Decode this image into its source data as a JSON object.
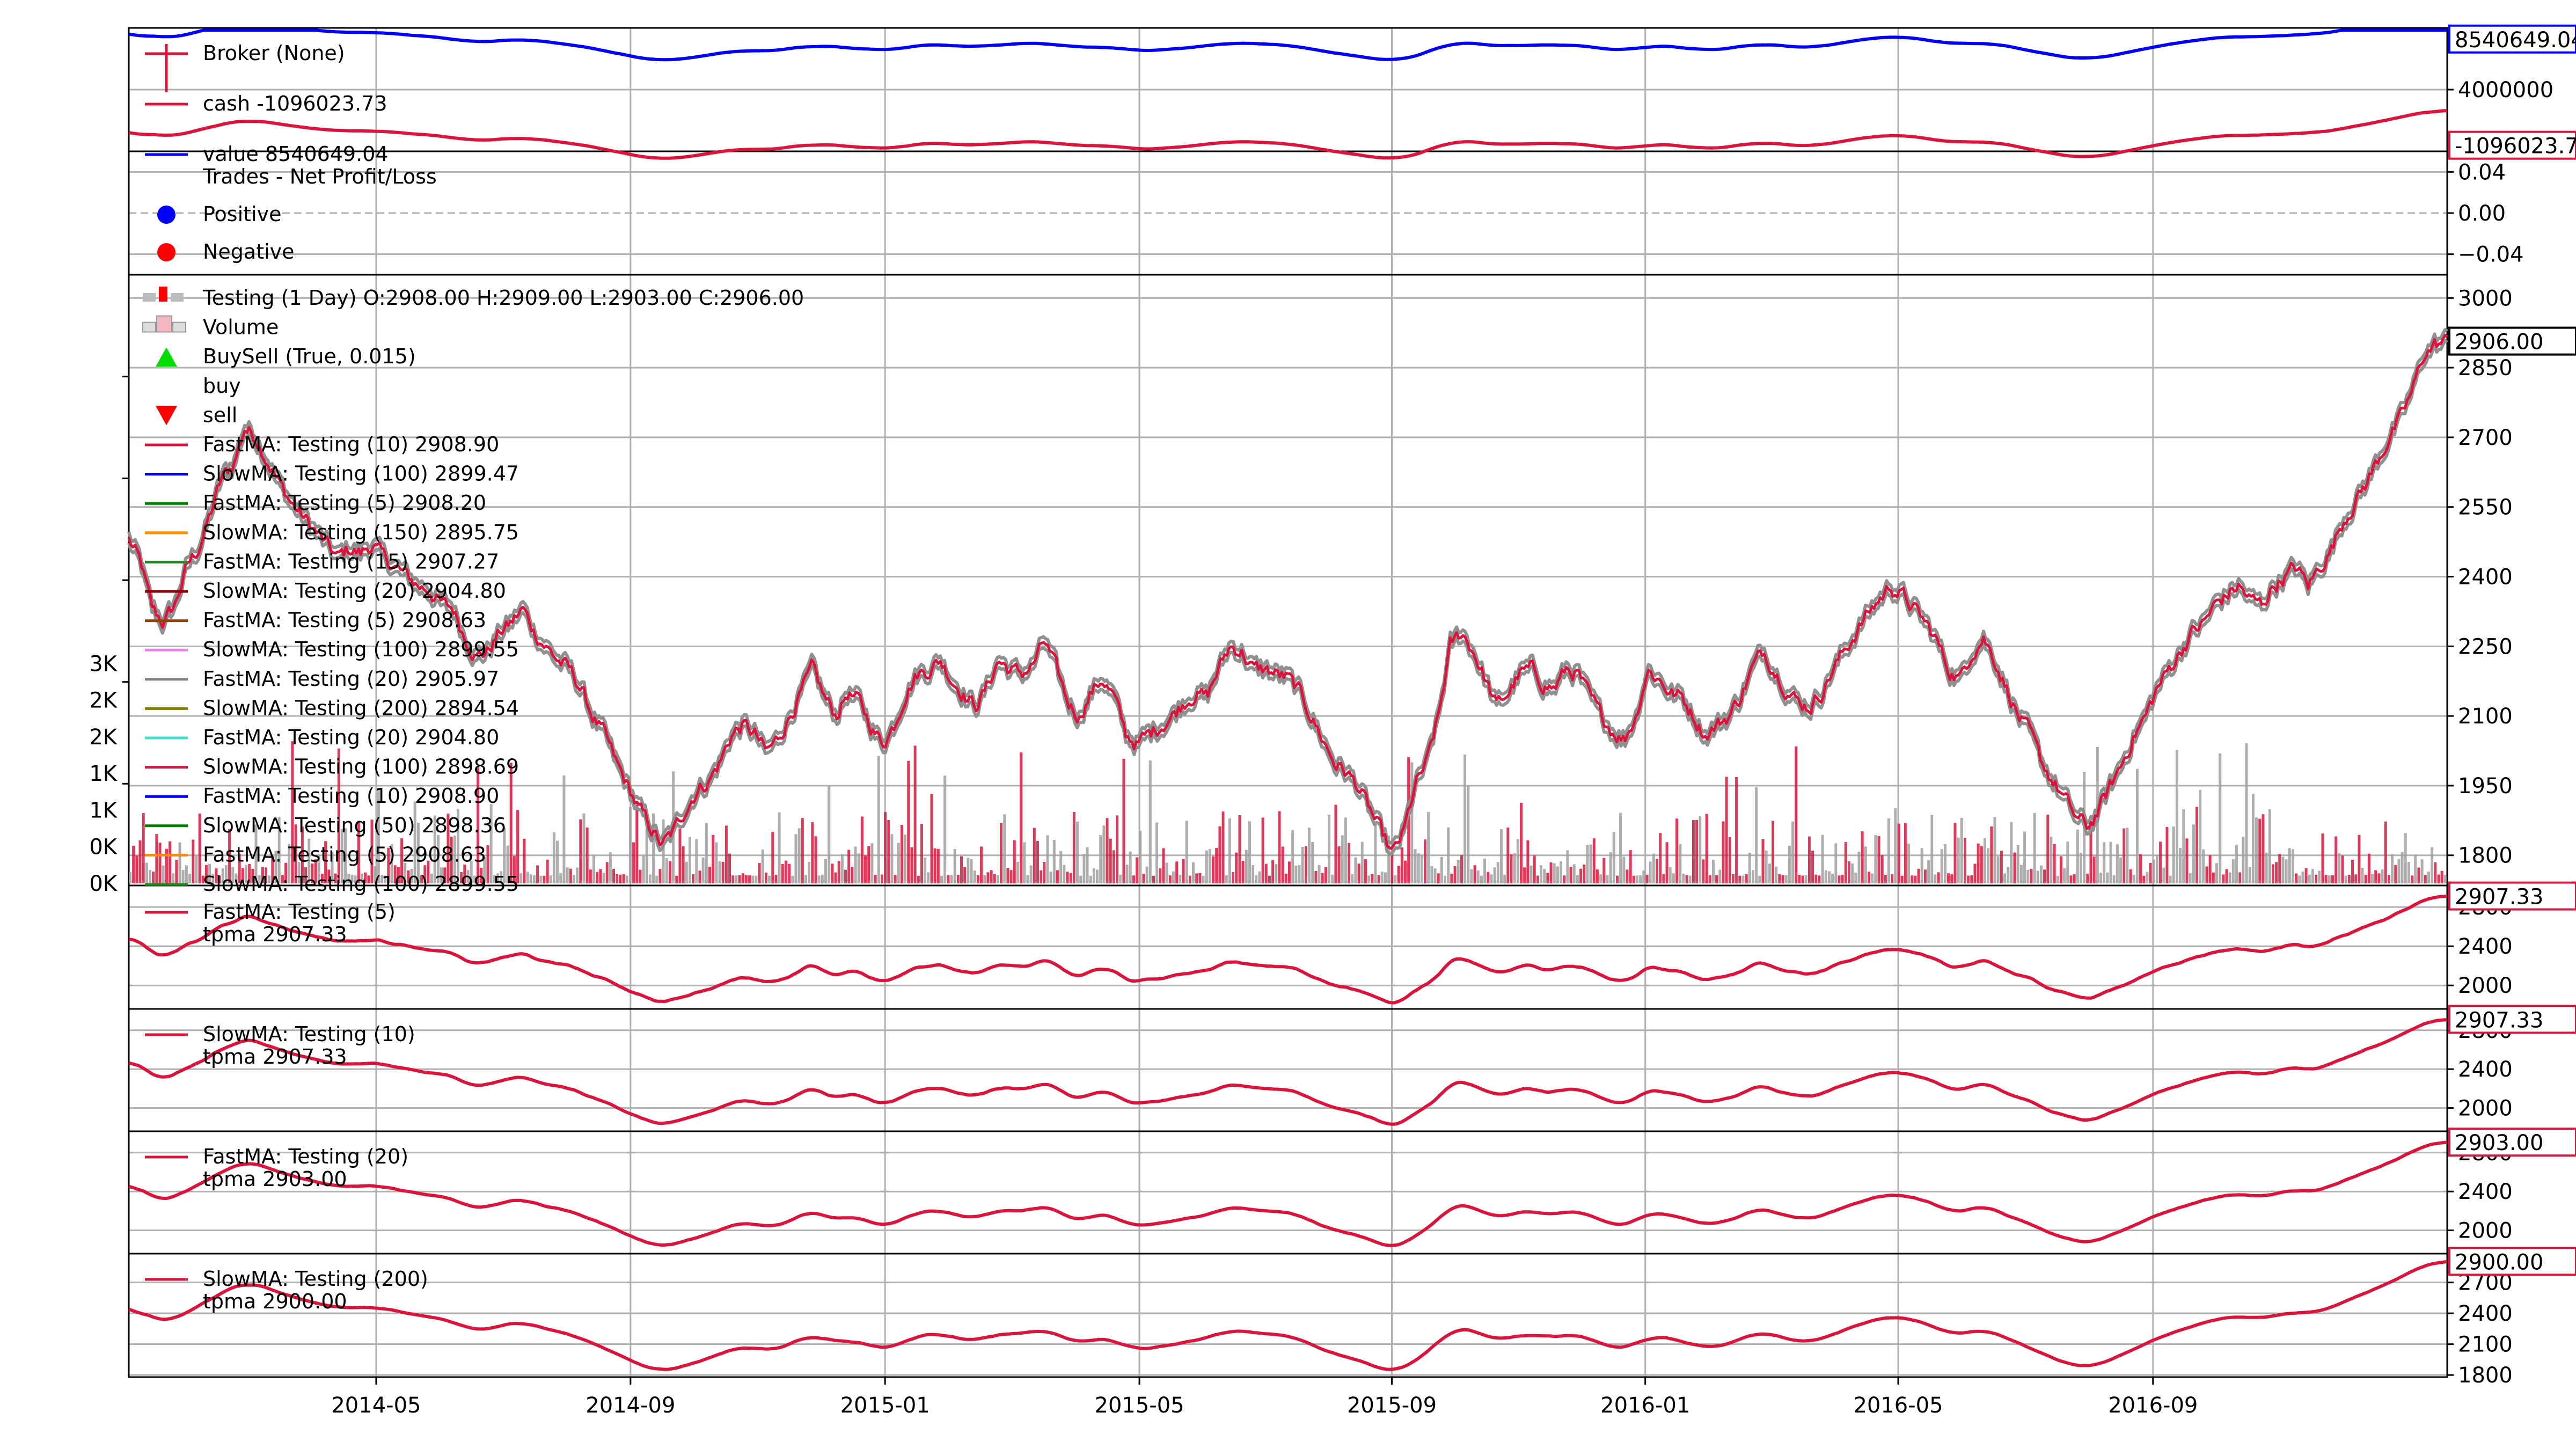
{
  "chart_data": {
    "type": "line",
    "x_ticks": [
      "2014-05",
      "2014-09",
      "2015-01",
      "2015-05",
      "2015-09",
      "2016-01",
      "2016-05",
      "2016-09"
    ],
    "x_tick_positions": [
      0.1067,
      0.2164,
      0.3262,
      0.4359,
      0.5448,
      0.6541,
      0.7632,
      0.8731
    ],
    "series_color_default": "#dc143c",
    "price_anchors": [
      [
        0.0,
        2480
      ],
      [
        0.005,
        2430
      ],
      [
        0.01,
        2330
      ],
      [
        0.015,
        2300
      ],
      [
        0.02,
        2340
      ],
      [
        0.025,
        2420
      ],
      [
        0.03,
        2460
      ],
      [
        0.035,
        2530
      ],
      [
        0.04,
        2610
      ],
      [
        0.045,
        2640
      ],
      [
        0.05,
        2720
      ],
      [
        0.055,
        2700
      ],
      [
        0.06,
        2650
      ],
      [
        0.065,
        2600
      ],
      [
        0.07,
        2560
      ],
      [
        0.075,
        2530
      ],
      [
        0.08,
        2500
      ],
      [
        0.085,
        2470
      ],
      [
        0.09,
        2440
      ],
      [
        0.095,
        2460
      ],
      [
        0.1,
        2450
      ],
      [
        0.105,
        2470
      ],
      [
        0.11,
        2440
      ],
      [
        0.115,
        2420
      ],
      [
        0.12,
        2400
      ],
      [
        0.125,
        2380
      ],
      [
        0.13,
        2370
      ],
      [
        0.135,
        2340
      ],
      [
        0.14,
        2330
      ],
      [
        0.145,
        2270
      ],
      [
        0.15,
        2230
      ],
      [
        0.155,
        2240
      ],
      [
        0.16,
        2280
      ],
      [
        0.165,
        2300
      ],
      [
        0.17,
        2330
      ],
      [
        0.175,
        2280
      ],
      [
        0.18,
        2250
      ],
      [
        0.185,
        2220
      ],
      [
        0.19,
        2200
      ],
      [
        0.195,
        2160
      ],
      [
        0.2,
        2100
      ],
      [
        0.205,
        2060
      ],
      [
        0.21,
        2000
      ],
      [
        0.215,
        1950
      ],
      [
        0.22,
        1900
      ],
      [
        0.225,
        1860
      ],
      [
        0.23,
        1820
      ],
      [
        0.235,
        1850
      ],
      [
        0.24,
        1900
      ],
      [
        0.245,
        1940
      ],
      [
        0.25,
        1960
      ],
      [
        0.255,
        2000
      ],
      [
        0.26,
        2060
      ],
      [
        0.265,
        2080
      ],
      [
        0.27,
        2060
      ],
      [
        0.275,
        2020
      ],
      [
        0.28,
        2050
      ],
      [
        0.285,
        2100
      ],
      [
        0.29,
        2150
      ],
      [
        0.295,
        2200
      ],
      [
        0.3,
        2140
      ],
      [
        0.305,
        2100
      ],
      [
        0.31,
        2150
      ],
      [
        0.315,
        2130
      ],
      [
        0.32,
        2080
      ],
      [
        0.325,
        2040
      ],
      [
        0.33,
        2080
      ],
      [
        0.335,
        2150
      ],
      [
        0.34,
        2190
      ],
      [
        0.345,
        2200
      ],
      [
        0.35,
        2220
      ],
      [
        0.355,
        2180
      ],
      [
        0.36,
        2150
      ],
      [
        0.365,
        2120
      ],
      [
        0.37,
        2160
      ],
      [
        0.375,
        2220
      ],
      [
        0.38,
        2200
      ],
      [
        0.385,
        2190
      ],
      [
        0.39,
        2210
      ],
      [
        0.395,
        2260
      ],
      [
        0.4,
        2200
      ],
      [
        0.405,
        2130
      ],
      [
        0.41,
        2100
      ],
      [
        0.415,
        2150
      ],
      [
        0.42,
        2180
      ],
      [
        0.425,
        2140
      ],
      [
        0.43,
        2060
      ],
      [
        0.435,
        2040
      ],
      [
        0.44,
        2060
      ],
      [
        0.445,
        2080
      ],
      [
        0.45,
        2100
      ],
      [
        0.455,
        2130
      ],
      [
        0.46,
        2150
      ],
      [
        0.465,
        2140
      ],
      [
        0.47,
        2200
      ],
      [
        0.475,
        2250
      ],
      [
        0.48,
        2240
      ],
      [
        0.485,
        2200
      ],
      [
        0.49,
        2200
      ],
      [
        0.495,
        2190
      ],
      [
        0.5,
        2180
      ],
      [
        0.505,
        2150
      ],
      [
        0.51,
        2100
      ],
      [
        0.515,
        2050
      ],
      [
        0.52,
        2000
      ],
      [
        0.525,
        1980
      ],
      [
        0.53,
        1950
      ],
      [
        0.535,
        1900
      ],
      [
        0.54,
        1850
      ],
      [
        0.545,
        1800
      ],
      [
        0.55,
        1850
      ],
      [
        0.555,
        1950
      ],
      [
        0.56,
        2000
      ],
      [
        0.565,
        2100
      ],
      [
        0.57,
        2250
      ],
      [
        0.575,
        2280
      ],
      [
        0.58,
        2240
      ],
      [
        0.585,
        2180
      ],
      [
        0.59,
        2120
      ],
      [
        0.595,
        2150
      ],
      [
        0.6,
        2190
      ],
      [
        0.605,
        2200
      ],
      [
        0.61,
        2170
      ],
      [
        0.615,
        2160
      ],
      [
        0.62,
        2200
      ],
      [
        0.625,
        2190
      ],
      [
        0.63,
        2140
      ],
      [
        0.635,
        2100
      ],
      [
        0.64,
        2070
      ],
      [
        0.645,
        2050
      ],
      [
        0.65,
        2100
      ],
      [
        0.655,
        2200
      ],
      [
        0.66,
        2180
      ],
      [
        0.665,
        2150
      ],
      [
        0.67,
        2140
      ],
      [
        0.675,
        2100
      ],
      [
        0.68,
        2060
      ],
      [
        0.685,
        2080
      ],
      [
        0.69,
        2100
      ],
      [
        0.695,
        2140
      ],
      [
        0.7,
        2200
      ],
      [
        0.705,
        2240
      ],
      [
        0.71,
        2200
      ],
      [
        0.715,
        2160
      ],
      [
        0.72,
        2130
      ],
      [
        0.725,
        2120
      ],
      [
        0.73,
        2150
      ],
      [
        0.735,
        2200
      ],
      [
        0.74,
        2240
      ],
      [
        0.745,
        2280
      ],
      [
        0.75,
        2320
      ],
      [
        0.755,
        2350
      ],
      [
        0.76,
        2380
      ],
      [
        0.765,
        2360
      ],
      [
        0.77,
        2330
      ],
      [
        0.775,
        2300
      ],
      [
        0.78,
        2260
      ],
      [
        0.785,
        2200
      ],
      [
        0.79,
        2180
      ],
      [
        0.795,
        2240
      ],
      [
        0.8,
        2270
      ],
      [
        0.805,
        2220
      ],
      [
        0.81,
        2160
      ],
      [
        0.815,
        2100
      ],
      [
        0.82,
        2060
      ],
      [
        0.825,
        2000
      ],
      [
        0.83,
        1960
      ],
      [
        0.835,
        1920
      ],
      [
        0.84,
        1880
      ],
      [
        0.845,
        1860
      ],
      [
        0.85,
        1900
      ],
      [
        0.855,
        1950
      ],
      [
        0.86,
        2000
      ],
      [
        0.865,
        2060
      ],
      [
        0.87,
        2100
      ],
      [
        0.875,
        2160
      ],
      [
        0.88,
        2200
      ],
      [
        0.885,
        2240
      ],
      [
        0.89,
        2280
      ],
      [
        0.895,
        2300
      ],
      [
        0.9,
        2340
      ],
      [
        0.905,
        2360
      ],
      [
        0.91,
        2380
      ],
      [
        0.915,
        2350
      ],
      [
        0.92,
        2340
      ],
      [
        0.925,
        2380
      ],
      [
        0.93,
        2400
      ],
      [
        0.935,
        2420
      ],
      [
        0.94,
        2380
      ],
      [
        0.945,
        2420
      ],
      [
        0.95,
        2460
      ],
      [
        0.955,
        2520
      ],
      [
        0.96,
        2560
      ],
      [
        0.965,
        2600
      ],
      [
        0.97,
        2650
      ],
      [
        0.975,
        2700
      ],
      [
        0.98,
        2740
      ],
      [
        0.985,
        2800
      ],
      [
        0.99,
        2880
      ],
      [
        0.995,
        2900
      ],
      [
        1.0,
        2906
      ]
    ],
    "volume_ticks": [
      "0K",
      "0K",
      "1K",
      "1K",
      "2K",
      "2K",
      "3K"
    ],
    "volume_tick_values": [
      0,
      500,
      1000,
      1500,
      2000,
      2500,
      3000
    ],
    "panels": [
      {
        "name": "broker",
        "legend": [
          {
            "label": "Broker (None)",
            "color": "#dc143c",
            "marker": "header"
          },
          {
            "label": "cash -1096023.73",
            "color": "#dc143c",
            "marker": "line"
          },
          {
            "label": "value 8540649.04",
            "color": "#0000ff",
            "marker": "line"
          }
        ],
        "y_ticks": [
          {
            "label": "4000000",
            "v": 4000000
          }
        ],
        "ylim": [
          -1600000,
          9600000
        ],
        "value_line_offset": 8540649.04,
        "cash_line_offset": -1096023.73,
        "tags": [
          {
            "text": "8540649.04",
            "color": "#0000ff",
            "v": 8540649.04
          },
          {
            "text": "-1096023.73",
            "color": "#dc143c",
            "v": -1096023.73
          }
        ]
      },
      {
        "name": "trades",
        "legend": [
          {
            "label": "Trades - Net Profit/Loss",
            "color": "#000000",
            "marker": "none"
          },
          {
            "label": "Positive",
            "color": "#0000ff",
            "marker": "dot"
          },
          {
            "label": "Negative",
            "color": "#ff0000",
            "marker": "dot"
          }
        ],
        "y_ticks": [
          {
            "label": "0.04",
            "v": 0.04
          },
          {
            "label": "0.00",
            "v": 0.0
          },
          {
            "label": "−0.04",
            "v": -0.04
          }
        ],
        "ylim": [
          -0.06,
          0.06
        ]
      },
      {
        "name": "main",
        "legend": [
          {
            "label": "Testing (1 Day) O:2908.00 H:2909.00 L:2903.00 C:2906.00",
            "color": "#888888",
            "marker": "bar"
          },
          {
            "label": "Volume",
            "color": "#888888",
            "marker": "vol"
          },
          {
            "label": "BuySell (True, 0.015)",
            "color": "#00dd00",
            "marker": "up"
          },
          {
            "label": "buy",
            "color": "#00dd00",
            "marker": "none"
          },
          {
            "label": "sell",
            "color": "#ff0000",
            "marker": "down"
          },
          {
            "label": "FastMA: Testing (10) 2908.90",
            "color": "#dc143c",
            "marker": "line"
          },
          {
            "label": "SlowMA: Testing (100) 2899.47",
            "color": "#0000ff",
            "marker": "line"
          },
          {
            "label": "FastMA: Testing (5) 2908.20",
            "color": "#008000",
            "marker": "line"
          },
          {
            "label": "SlowMA: Testing (150) 2895.75",
            "color": "#ff8c00",
            "marker": "line"
          },
          {
            "label": "FastMA: Testing (15) 2907.27",
            "color": "#228b22",
            "marker": "line"
          },
          {
            "label": "SlowMA: Testing (20) 2904.80",
            "color": "#8b0000",
            "marker": "line"
          },
          {
            "label": "FastMA: Testing (5) 2908.63",
            "color": "#8b4513",
            "marker": "line"
          },
          {
            "label": "SlowMA: Testing (100) 2899.55",
            "color": "#ee82ee",
            "marker": "line"
          },
          {
            "label": "FastMA: Testing (20) 2905.97",
            "color": "#808080",
            "marker": "line"
          },
          {
            "label": "SlowMA: Testing (200) 2894.54",
            "color": "#808000",
            "marker": "line"
          },
          {
            "label": "FastMA: Testing (20) 2904.80",
            "color": "#40e0d0",
            "marker": "line"
          },
          {
            "label": "SlowMA: Testing (100) 2898.69",
            "color": "#dc143c",
            "marker": "line"
          },
          {
            "label": "FastMA: Testing (10) 2908.90",
            "color": "#0000ff",
            "marker": "line"
          },
          {
            "label": "SlowMA: Testing (50) 2898.36",
            "color": "#008000",
            "marker": "line"
          },
          {
            "label": "FastMA: Testing (5) 2908.63",
            "color": "#ff8c00",
            "marker": "line"
          },
          {
            "label": "SlowMA: Testing (100) 2899.55",
            "color": "#228b22",
            "marker": "line"
          }
        ],
        "y_ticks": [
          {
            "label": "3000",
            "v": 3000
          },
          {
            "label": "2850",
            "v": 2850
          },
          {
            "label": "2700",
            "v": 2700
          },
          {
            "label": "2550",
            "v": 2550
          },
          {
            "label": "2400",
            "v": 2400
          },
          {
            "label": "2250",
            "v": 2250
          },
          {
            "label": "2100",
            "v": 2100
          },
          {
            "label": "1950",
            "v": 1950
          },
          {
            "label": "1800",
            "v": 1800
          }
        ],
        "ylim": [
          1735,
          3050
        ],
        "tags": [
          {
            "text": "2906.00",
            "color": "#000000",
            "v": 2906
          }
        ]
      },
      {
        "name": "sub1",
        "legend": [
          {
            "label": "FastMA: Testing (5)",
            "color": "#dc143c",
            "marker": "line"
          },
          {
            "label": "tpma 2907.33",
            "color": "#000000",
            "marker": "none"
          }
        ],
        "y_ticks": [
          {
            "label": "2800",
            "v": 2800
          },
          {
            "label": "2400",
            "v": 2400
          },
          {
            "label": "2000",
            "v": 2000
          }
        ],
        "ylim": [
          1760,
          3020
        ],
        "tags": [
          {
            "text": "2907.33",
            "color": "#dc143c",
            "v": 2907.33
          }
        ]
      },
      {
        "name": "sub2",
        "legend": [
          {
            "label": "SlowMA: Testing (10)",
            "color": "#dc143c",
            "marker": "line"
          },
          {
            "label": "tpma 2907.33",
            "color": "#000000",
            "marker": "none"
          }
        ],
        "y_ticks": [
          {
            "label": "2800",
            "v": 2800
          },
          {
            "label": "2400",
            "v": 2400
          },
          {
            "label": "2000",
            "v": 2000
          }
        ],
        "ylim": [
          1760,
          3020
        ],
        "tags": [
          {
            "text": "2907.33",
            "color": "#dc143c",
            "v": 2907.33
          }
        ]
      },
      {
        "name": "sub3",
        "legend": [
          {
            "label": "FastMA: Testing (20)",
            "color": "#dc143c",
            "marker": "line"
          },
          {
            "label": "tpma 2903.00",
            "color": "#000000",
            "marker": "none"
          }
        ],
        "y_ticks": [
          {
            "label": "2800",
            "v": 2800
          },
          {
            "label": "2400",
            "v": 2400
          },
          {
            "label": "2000",
            "v": 2000
          }
        ],
        "ylim": [
          1760,
          3020
        ],
        "tags": [
          {
            "text": "2903.00",
            "color": "#dc143c",
            "v": 2903.0
          }
        ]
      },
      {
        "name": "sub4",
        "legend": [
          {
            "label": "SlowMA: Testing (200)",
            "color": "#dc143c",
            "marker": "line"
          },
          {
            "label": "tpma 2900.00",
            "color": "#000000",
            "marker": "none"
          }
        ],
        "y_ticks": [
          {
            "label": "2700",
            "v": 2700
          },
          {
            "label": "2400",
            "v": 2400
          },
          {
            "label": "2100",
            "v": 2100
          },
          {
            "label": "1800",
            "v": 1800
          }
        ],
        "ylim": [
          1780,
          2980
        ],
        "tags": [
          {
            "text": "2900.00",
            "color": "#dc143c",
            "v": 2900.0
          }
        ]
      }
    ]
  }
}
